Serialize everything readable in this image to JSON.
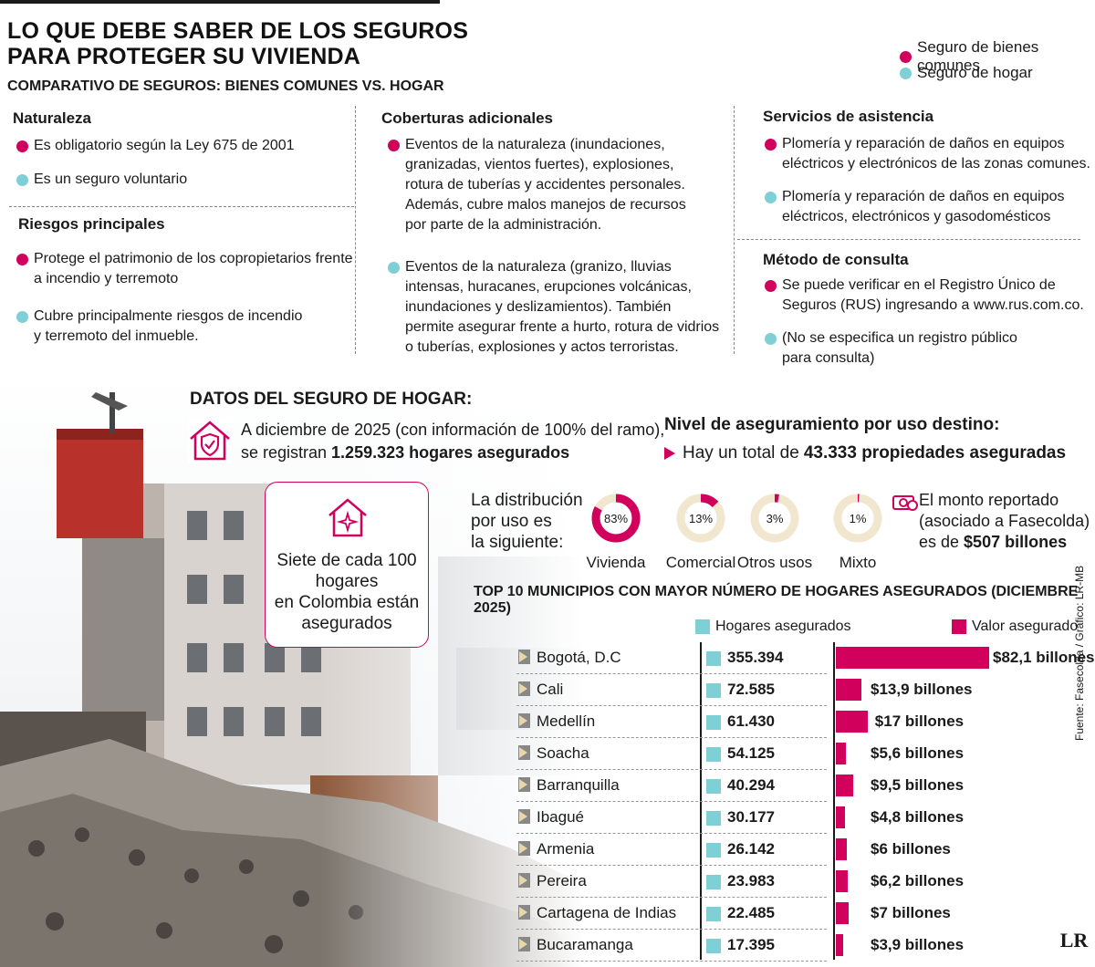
{
  "header": {
    "title_line1": "LO QUE DEBE SABER DE LOS SEGUROS",
    "title_line2": "PARA PROTEGER SU VIVIENDA",
    "subtitle": "COMPARATIVO DE SEGUROS: BIENES COMUNES VS. HOGAR"
  },
  "legend": {
    "bienes": "Seguro de bienes comunes",
    "hogar": "Seguro de hogar"
  },
  "colors": {
    "magenta": "#d1005d",
    "cyan": "#7fcfd6"
  },
  "naturaleza": {
    "heading": "Naturaleza",
    "bienes": "Es obligatorio según la Ley 675 de 2001",
    "hogar": "Es un seguro voluntario"
  },
  "riesgos": {
    "heading": "Riesgos principales",
    "bienes_l1": "Protege el patrimonio de los copropietarios frente",
    "bienes_l2": "a incendio y terremoto",
    "hogar_l1": "Cubre principalmente riesgos de incendio",
    "hogar_l2": "y terremoto del inmueble."
  },
  "coberturas": {
    "heading": "Coberturas adicionales",
    "bienes": [
      "Eventos de la naturaleza (inundaciones,",
      "granizadas, vientos fuertes), explosiones,",
      "rotura de tuberías y accidentes personales.",
      "Además, cubre malos manejos de recursos",
      "por parte de la administración."
    ],
    "hogar": [
      "Eventos de la naturaleza (granizo, lluvias",
      "intensas, huracanes, erupciones volcánicas,",
      "inundaciones y deslizamientos). También",
      "permite asegurar frente a hurto, rotura de vidrios",
      "o tuberías, explosiones y actos terroristas."
    ]
  },
  "servicios": {
    "heading": "Servicios de asistencia",
    "bienes": [
      "Plomería y reparación de daños en equipos",
      "eléctricos y electrónicos de las zonas comunes."
    ],
    "hogar": [
      "Plomería y reparación de daños en equipos",
      "eléctricos, electrónicos y gasodomésticos"
    ]
  },
  "metodo": {
    "heading": "Método de consulta",
    "bienes": [
      "Se puede verificar en el Registro Único de",
      "Seguros (RUS) ingresando a www.rus.com.co."
    ],
    "hogar": [
      "(No se especifica un registro público",
      "para consulta)"
    ]
  },
  "datos": {
    "heading": "DATOS DEL SEGURO DE HOGAR:",
    "line1": "A diciembre de 2025 (con información de 100% del ramo),",
    "line2_pre": "se registran ",
    "line2_bold": "1.259.323 hogares asegurados",
    "card": [
      "Siete de cada 100",
      "hogares",
      "en Colombia están",
      "asegurados"
    ]
  },
  "nivel": {
    "heading": "Nivel de aseguramiento por uso destino:",
    "pre": "Hay un total de ",
    "bold": "43.333 propiedades aseguradas",
    "dist": [
      "La distribución",
      "por uso es",
      "la siguiente:"
    ]
  },
  "monto": {
    "l1": "El monto reportado",
    "l2": "(asociado a Fasecolda)",
    "l3_pre": "es de ",
    "l3_bold": "$507 billones"
  },
  "chart_data": [
    {
      "type": "pie",
      "categories": [
        "Vivienda",
        "Comercial",
        "Otros usos",
        "Mixto"
      ],
      "values": [
        83,
        13,
        3,
        1
      ],
      "labels": [
        "83%",
        "13%",
        "3%",
        "1%"
      ]
    },
    {
      "type": "bar",
      "title": "TOP 10 MUNICIPIOS CON MAYOR NÚMERO DE HOGARES ASEGURADOS (DICIEMBRE 2025)",
      "categories": [
        "Bogotá, D.C",
        "Cali",
        "Medellín",
        "Soacha",
        "Barranquilla",
        "Ibagué",
        "Armenia",
        "Pereira",
        "Cartagena de Indias",
        "Bucaramanga"
      ],
      "series": [
        {
          "name": "Hogares asegurados",
          "labels": [
            "355.394",
            "72.585",
            "61.430",
            "54.125",
            "40.294",
            "30.177",
            "26.142",
            "23.983",
            "22.485",
            "17.395"
          ],
          "values": [
            355394,
            72585,
            61430,
            54125,
            40294,
            30177,
            26142,
            23983,
            22485,
            17395
          ]
        },
        {
          "name": "Valor asegurado",
          "labels": [
            "$82,1 billones",
            "$13,9 billones",
            "$17 billones",
            "$5,6 billones",
            "$9,5 billones",
            "$4,8 billones",
            "$6 billones",
            "$6,2 billones",
            "$7 billones",
            "$3,9 billones"
          ],
          "values": [
            82.1,
            13.9,
            17,
            5.6,
            9.5,
            4.8,
            6,
            6.2,
            7,
            3.9
          ]
        }
      ]
    }
  ],
  "fuente": "Fuente: Fasecolda / Gráfico: LR-MB",
  "logo": "LR"
}
